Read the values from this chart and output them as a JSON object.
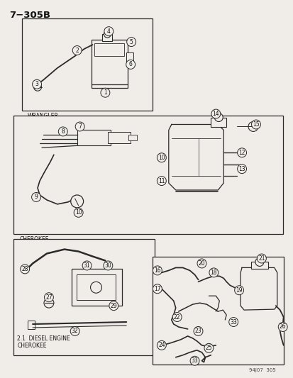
{
  "title": "7−305B",
  "bg_color": "#f0ede8",
  "fig_width": 4.14,
  "fig_height": 5.33,
  "dpi": 100,
  "bottom_label": "94J07  305",
  "section_labels": {
    "wrangler": "WRANGLER",
    "cherokee": "CHEROKEE",
    "diesel": "2.1  DIESEL ENGINE\nCHEROKEE"
  },
  "line_color": "#2a2a2a",
  "text_color": "#111111",
  "callout_bg": "#f0ede8",
  "callout_edge": "#2a2a2a",
  "box_bg": "#f0ede8"
}
